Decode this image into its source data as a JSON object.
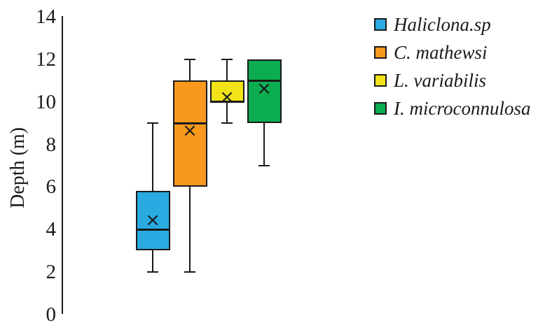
{
  "chart_data": {
    "type": "boxplot",
    "title": "",
    "xlabel": "",
    "ylabel": "Depth (m)",
    "ylim": [
      0,
      14
    ],
    "yticks": [
      0,
      2,
      4,
      6,
      8,
      10,
      12,
      14
    ],
    "grid": false,
    "legend_position": "top-right",
    "mean_marker_symbol": "×",
    "axis_color": "#1a1a1a",
    "series": [
      {
        "name": "Haliclona.sp",
        "color": "#29ABE2",
        "whisker_low": 2,
        "q1": 3,
        "median": 4,
        "q3": 5.8,
        "whisker_high": 9,
        "mean": 4.4
      },
      {
        "name": "C. mathewsi",
        "color": "#F8991D",
        "whisker_low": 2,
        "q1": 6,
        "median": 9,
        "q3": 11,
        "whisker_high": 12,
        "mean": 8.6
      },
      {
        "name": "L. variabilis",
        "color": "#F2E318",
        "whisker_low": 9,
        "q1": 10,
        "median": 10,
        "q3": 11,
        "whisker_high": 12,
        "mean": 10.2
      },
      {
        "name": "I. microconnulosa",
        "color": "#0CAC50",
        "whisker_low": 7,
        "q1": 9,
        "median": 11,
        "q3": 12,
        "whisker_high": 12,
        "mean": 10.6
      }
    ]
  }
}
